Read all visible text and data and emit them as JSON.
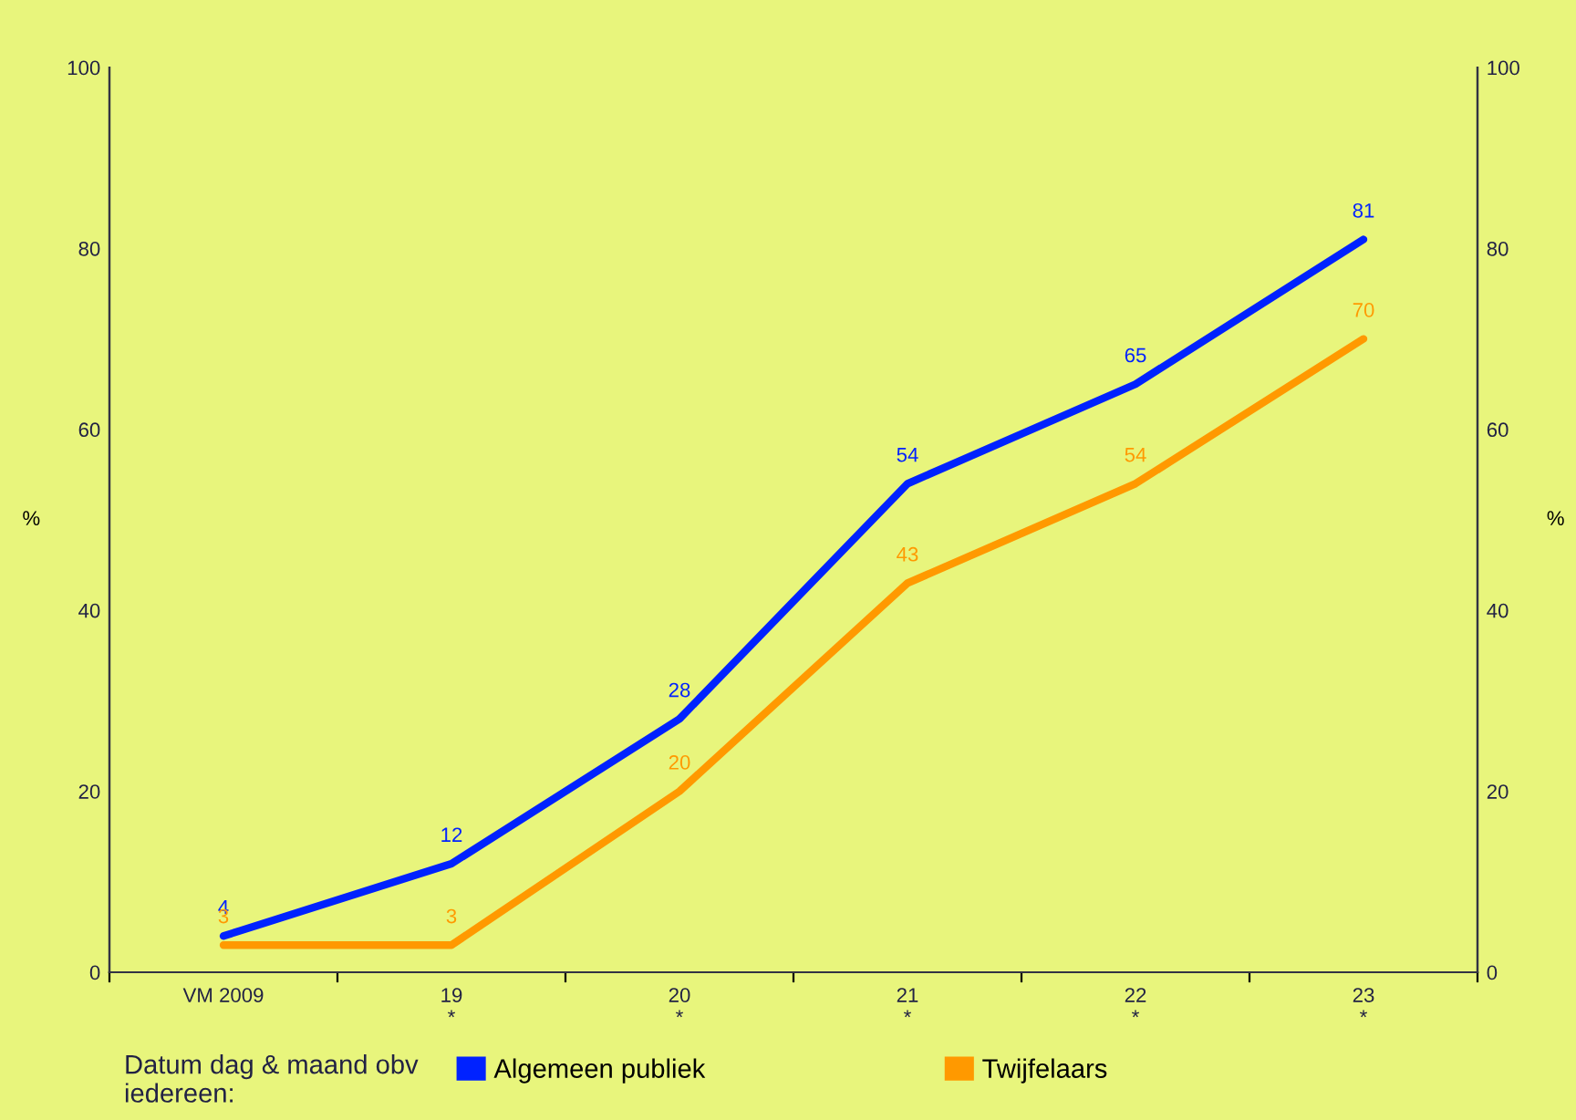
{
  "chart_data": {
    "type": "line",
    "categories": [
      "VM 2009",
      "19\n*",
      "20\n*",
      "21\n*",
      "22\n*",
      "23\n*"
    ],
    "series": [
      {
        "name": "Algemeen publiek",
        "color": "#0022ff",
        "values": [
          4,
          12,
          28,
          54,
          65,
          81
        ]
      },
      {
        "name": "Twijfelaars",
        "color": "#ff9900",
        "values": [
          3,
          3,
          20,
          43,
          54,
          70
        ]
      }
    ],
    "ylabel": "%",
    "y2label": "%",
    "ylim": [
      0,
      100
    ],
    "yticks": [
      0,
      20,
      40,
      60,
      80,
      100
    ],
    "y2lim": [
      0,
      100
    ],
    "y2ticks": [
      0,
      20,
      40,
      60,
      80,
      100
    ],
    "legend_title": "Datum dag & maand obv\niedereen:",
    "legend": "bottom",
    "grid": false,
    "marker": "none",
    "line_style": "solid",
    "data_labels": true
  }
}
